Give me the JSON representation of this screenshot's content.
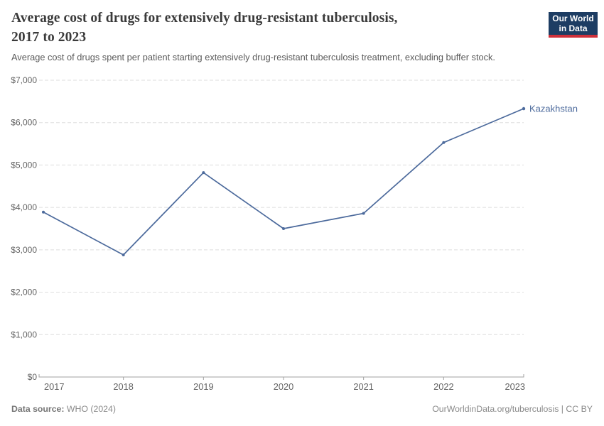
{
  "header": {
    "title_line1": "Average cost of drugs for extensively drug-resistant tuberculosis,",
    "title_line2": "2017 to 2023",
    "subtitle": "Average cost of drugs spent per patient starting extensively drug-resistant tuberculosis treatment, excluding buffer stock.",
    "logo": {
      "line1": "Our World",
      "line2": "in Data"
    }
  },
  "chart_data": {
    "type": "line",
    "title": "Average cost of drugs for extensively drug-resistant tuberculosis, 2017 to 2023",
    "subtitle": "Average cost of drugs spent per patient starting extensively drug-resistant tuberculosis treatment, excluding buffer stock.",
    "x": [
      2017,
      2018,
      2019,
      2020,
      2021,
      2022,
      2023
    ],
    "xtick_labels": [
      "2017",
      "2018",
      "2019",
      "2020",
      "2021",
      "2022",
      "2023"
    ],
    "series": [
      {
        "name": "Kazakhstan",
        "values": [
          3890,
          2880,
          4820,
          3500,
          3860,
          5530,
          6330
        ],
        "color": "#4c6a9c"
      }
    ],
    "ylim": [
      0,
      7000
    ],
    "yticks": [
      0,
      1000,
      2000,
      3000,
      4000,
      5000,
      6000,
      7000
    ],
    "ytick_labels": [
      "$0",
      "$1,000",
      "$2,000",
      "$3,000",
      "$4,000",
      "$5,000",
      "$6,000",
      "$7,000"
    ],
    "xlabel": "",
    "ylabel": "",
    "grid": "horizontal-dashed",
    "legend_position": "end-of-line-label"
  },
  "footer": {
    "source_label": "Data source:",
    "source_value": " WHO (2024)",
    "right_text": "OurWorldinData.org/tuberculosis | CC BY"
  },
  "colors": {
    "line": "#4c6a9c",
    "gridline": "#dedede",
    "axis": "#a0a0a0",
    "tick_text": "#636363",
    "logo_bg": "#1d3d63",
    "logo_accent": "#cf303a"
  }
}
